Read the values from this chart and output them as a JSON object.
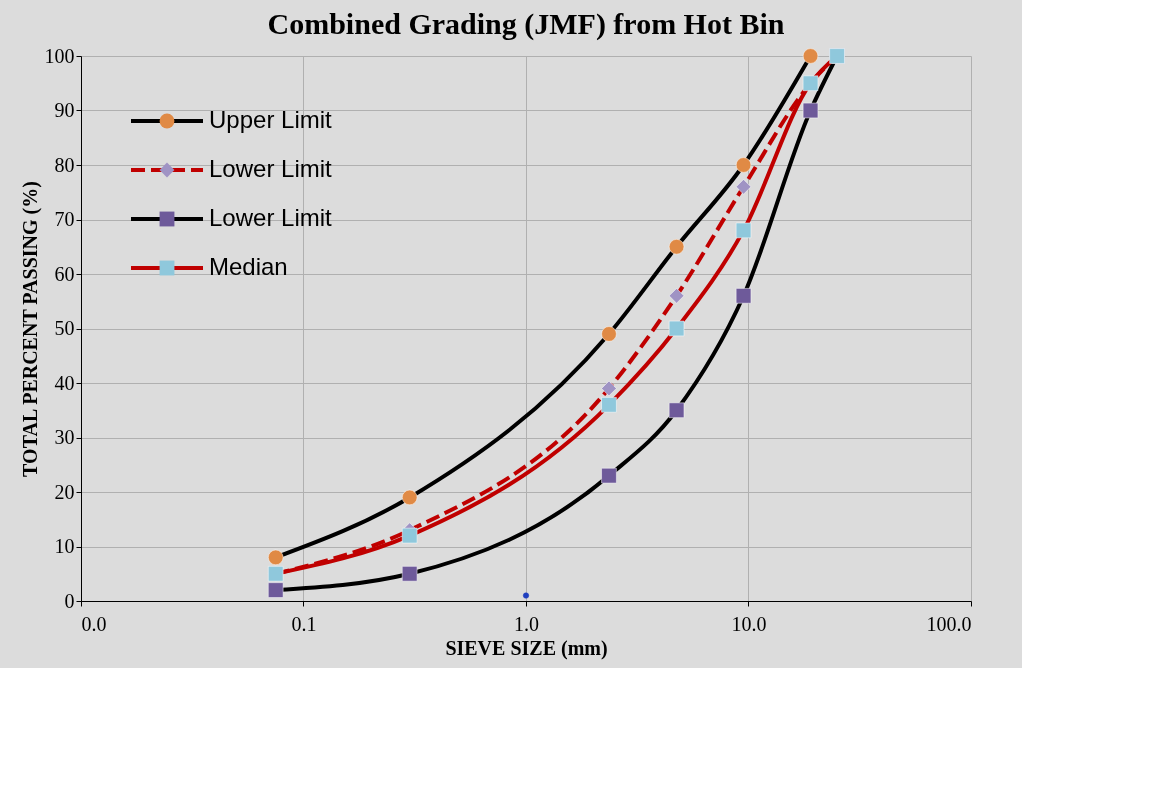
{
  "chart_data": {
    "type": "line",
    "title": "Combined  Grading (JMF) from Hot Bin",
    "xlabel": "SIEVE SIZE (mm)",
    "ylabel": "TOTAL PERCENT PASSING (%)",
    "log": "x",
    "xlim": [
      0.01,
      100
    ],
    "xticks": [
      {
        "value": 0.01,
        "label": "0.0"
      },
      {
        "value": 0.1,
        "label": "0.1"
      },
      {
        "value": 1,
        "label": "1.0"
      },
      {
        "value": 10,
        "label": "10.0"
      },
      {
        "value": 100,
        "label": "100.0"
      }
    ],
    "ylim": [
      0,
      100
    ],
    "yticks": [
      0,
      10,
      20,
      30,
      40,
      50,
      60,
      70,
      80,
      90,
      100
    ],
    "grid": true,
    "legend": "top left",
    "series": [
      {
        "name": "Upper Limit",
        "color": "#000000",
        "colors": [
          "#e08a45",
          "#e08a45",
          "#e08a45",
          "#e08a45",
          "#e08a45",
          "#e08a45"
        ],
        "marker": "circle",
        "line_style": "solid",
        "x": [
          0.075,
          0.3,
          2.36,
          4.75,
          9.5,
          19
        ],
        "values": [
          8,
          19,
          49,
          65,
          80,
          100
        ]
      },
      {
        "name": "Lower Limit",
        "color": "#c00000",
        "colors": [
          "#9f93c4",
          "#9f93c4",
          "#9f93c4",
          "#9f93c4",
          "#9f93c4",
          "#9f93c4",
          "#9f93c4"
        ],
        "marker": "diamond",
        "line_style": "dashed",
        "x": [
          0.075,
          0.3,
          2.36,
          4.75,
          9.5,
          19,
          25
        ],
        "values": [
          5,
          13,
          39,
          56,
          76,
          95,
          100
        ]
      },
      {
        "name": "Lower Limit",
        "color": "#000000",
        "colors": [
          "#6e5a9a",
          "#6e5a9a",
          "#6e5a9a",
          "#6e5a9a",
          "#6e5a9a",
          "#6e5a9a",
          "#6e5a9a"
        ],
        "marker": "square",
        "line_style": "solid",
        "x": [
          0.075,
          0.3,
          2.36,
          4.75,
          9.5,
          19,
          25
        ],
        "values": [
          2,
          5,
          23,
          35,
          56,
          90,
          100
        ]
      },
      {
        "name": "Median",
        "color": "#c00000",
        "colors": [
          "#8fc8dc",
          "#8fc8dc",
          "#8fc8dc",
          "#8fc8dc",
          "#8fc8dc",
          "#8fc8dc",
          "#8fc8dc"
        ],
        "marker": "square",
        "line_style": "solid",
        "x": [
          0.075,
          0.3,
          2.36,
          4.75,
          9.5,
          19,
          25
        ],
        "values": [
          5,
          12,
          36,
          50,
          68,
          95,
          100
        ]
      },
      {
        "type": "scatter",
        "color": "#1f3fbf",
        "marker": "circle",
        "x": [
          1
        ],
        "values": [
          1
        ]
      }
    ]
  }
}
